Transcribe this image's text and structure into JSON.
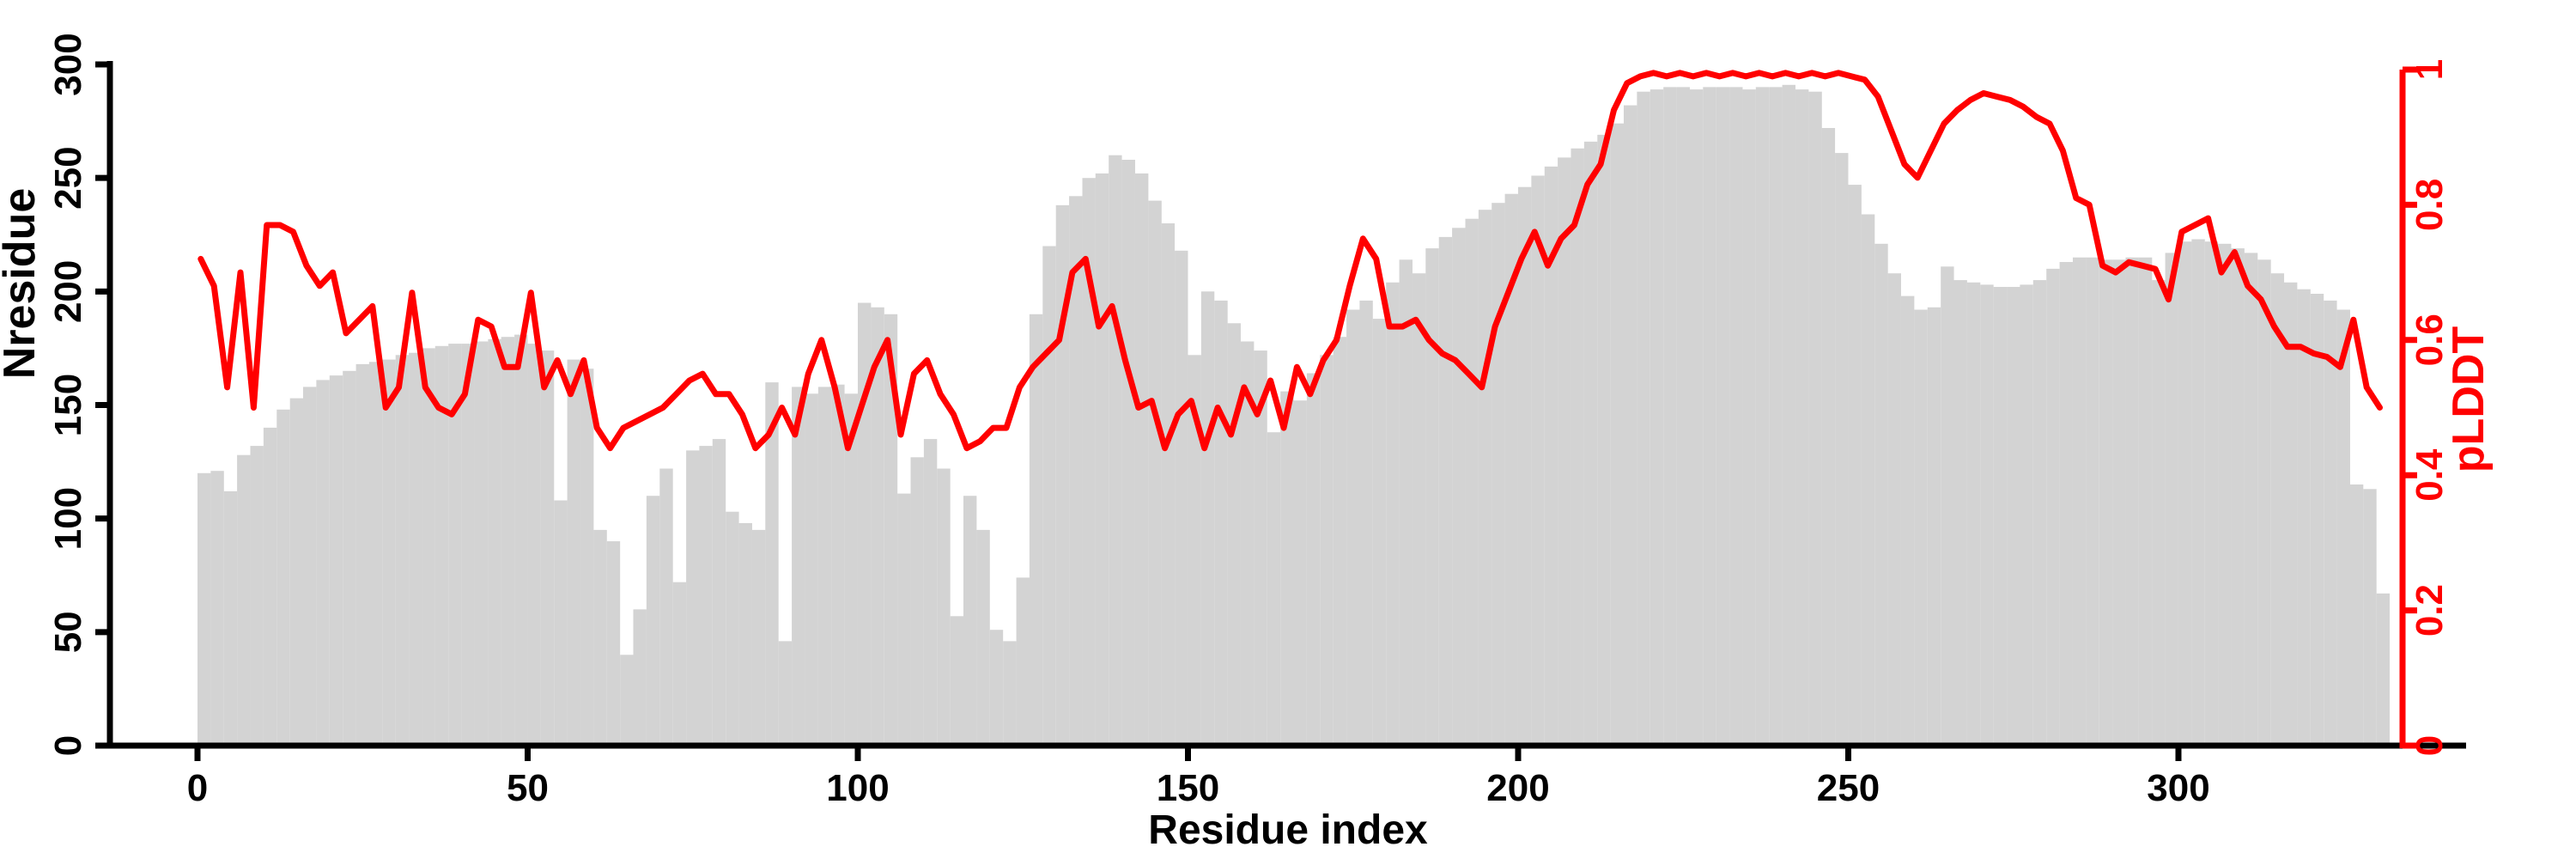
{
  "figure": {
    "background": "#ffffff",
    "bar_color": "#d3d3d3",
    "line_color": "#ff0000",
    "axis_color": "#000000"
  },
  "chart_data": {
    "type": "combo",
    "title": "",
    "xlabel": "Residue index",
    "ylabel_left": "Nresidue",
    "ylabel_right": "pLDDT",
    "x_ticks": [
      "0",
      "50",
      "100",
      "150",
      "200",
      "250",
      "300"
    ],
    "x_tick_values": [
      0,
      50,
      100,
      150,
      200,
      250,
      300
    ],
    "left_ticks": [
      "0",
      "50",
      "100",
      "150",
      "200",
      "250",
      "300"
    ],
    "left_tick_values": [
      0,
      50,
      100,
      150,
      200,
      250,
      300
    ],
    "right_ticks": [
      "0",
      "0.2",
      "0.4",
      "0.6",
      "0.8",
      "1"
    ],
    "right_tick_values": [
      0,
      0.2,
      0.4,
      0.6,
      0.8,
      1
    ],
    "xlim": [
      0,
      334
    ],
    "ylim_left": [
      0,
      300
    ],
    "ylim_right": [
      0,
      1
    ],
    "grid": false,
    "legend_position": "none",
    "x": [
      0,
      2,
      4,
      6,
      8,
      10,
      12,
      14,
      16,
      18,
      20,
      22,
      24,
      26,
      28,
      30,
      32,
      34,
      36,
      38,
      40,
      42,
      44,
      46,
      48,
      50,
      52,
      54,
      56,
      58,
      60,
      62,
      64,
      66,
      68,
      70,
      72,
      74,
      76,
      78,
      80,
      82,
      84,
      86,
      88,
      90,
      92,
      94,
      96,
      98,
      100,
      102,
      104,
      106,
      108,
      110,
      112,
      114,
      116,
      118,
      120,
      122,
      124,
      126,
      128,
      130,
      132,
      134,
      136,
      138,
      140,
      142,
      144,
      146,
      148,
      150,
      152,
      154,
      156,
      158,
      160,
      162,
      164,
      166,
      168,
      170,
      172,
      174,
      176,
      178,
      180,
      182,
      184,
      186,
      188,
      190,
      192,
      194,
      196,
      198,
      200,
      202,
      204,
      206,
      208,
      210,
      212,
      214,
      216,
      218,
      220,
      222,
      224,
      226,
      228,
      230,
      232,
      234,
      236,
      238,
      240,
      242,
      244,
      246,
      248,
      250,
      252,
      254,
      256,
      258,
      260,
      262,
      264,
      266,
      268,
      270,
      272,
      274,
      276,
      278,
      280,
      282,
      284,
      286,
      288,
      290,
      292,
      294,
      296,
      298,
      300,
      302,
      304,
      306,
      308,
      310,
      312,
      314,
      316,
      318,
      320,
      322,
      324,
      326,
      328,
      330
    ],
    "series": [
      {
        "name": "Nresidue",
        "type": "bar",
        "axis": "left",
        "color": "#d3d3d3",
        "values": [
          120,
          121,
          112,
          128,
          132,
          140,
          148,
          153,
          158,
          161,
          163,
          165,
          168,
          169,
          170,
          172,
          173,
          175,
          176,
          177,
          177,
          178,
          179,
          180,
          181,
          177,
          174,
          108,
          170,
          166,
          95,
          90,
          40,
          60,
          110,
          122,
          72,
          130,
          132,
          135,
          103,
          98,
          95,
          160,
          46,
          158,
          155,
          158,
          159,
          155,
          195,
          193,
          190,
          111,
          127,
          135,
          122,
          57,
          110,
          95,
          51,
          46,
          74,
          190,
          220,
          238,
          242,
          250,
          252,
          260,
          258,
          252,
          240,
          230,
          218,
          172,
          200,
          196,
          186,
          178,
          174,
          138,
          156,
          152,
          164,
          172,
          180,
          192,
          196,
          188,
          204,
          214,
          208,
          219,
          224,
          228,
          232,
          236,
          239,
          243,
          246,
          251,
          255,
          259,
          263,
          266,
          269,
          274,
          282,
          288,
          289,
          290,
          290,
          289,
          290,
          290,
          290,
          289,
          290,
          290,
          291,
          289,
          288,
          272,
          261,
          247,
          234,
          221,
          208,
          198,
          192,
          193,
          211,
          205,
          204,
          203,
          202,
          202,
          203,
          205,
          210,
          213,
          215,
          215,
          214,
          214,
          215,
          215,
          205,
          217,
          222,
          223,
          222,
          221,
          219,
          217,
          214,
          208,
          204,
          201,
          199,
          196,
          192,
          115,
          113,
          67
        ]
      },
      {
        "name": "pLDDT",
        "type": "line",
        "axis": "right",
        "color": "#ff0000",
        "values": [
          0.72,
          0.68,
          0.53,
          0.7,
          0.5,
          0.77,
          0.77,
          0.76,
          0.71,
          0.68,
          0.7,
          0.61,
          0.63,
          0.65,
          0.5,
          0.53,
          0.67,
          0.53,
          0.5,
          0.49,
          0.52,
          0.63,
          0.62,
          0.56,
          0.56,
          0.67,
          0.53,
          0.57,
          0.52,
          0.57,
          0.47,
          0.44,
          0.47,
          0.48,
          0.49,
          0.5,
          0.52,
          0.54,
          0.55,
          0.52,
          0.52,
          0.49,
          0.44,
          0.46,
          0.5,
          0.46,
          0.55,
          0.6,
          0.53,
          0.44,
          0.5,
          0.56,
          0.6,
          0.46,
          0.55,
          0.57,
          0.52,
          0.49,
          0.44,
          0.45,
          0.47,
          0.47,
          0.53,
          0.56,
          0.58,
          0.6,
          0.7,
          0.72,
          0.62,
          0.65,
          0.57,
          0.5,
          0.51,
          0.44,
          0.49,
          0.51,
          0.44,
          0.5,
          0.46,
          0.53,
          0.49,
          0.54,
          0.47,
          0.56,
          0.52,
          0.57,
          0.6,
          0.68,
          0.75,
          0.72,
          0.62,
          0.62,
          0.63,
          0.6,
          0.58,
          0.57,
          0.55,
          0.53,
          0.62,
          0.67,
          0.72,
          0.76,
          0.71,
          0.75,
          0.77,
          0.83,
          0.86,
          0.94,
          0.98,
          0.99,
          0.995,
          0.99,
          0.995,
          0.99,
          0.995,
          0.99,
          0.995,
          0.99,
          0.995,
          0.99,
          0.995,
          0.99,
          0.995,
          0.99,
          0.995,
          0.99,
          0.985,
          0.96,
          0.91,
          0.86,
          0.84,
          0.88,
          0.92,
          0.94,
          0.955,
          0.965,
          0.96,
          0.955,
          0.945,
          0.93,
          0.92,
          0.88,
          0.81,
          0.8,
          0.71,
          0.7,
          0.715,
          0.71,
          0.705,
          0.66,
          0.76,
          0.77,
          0.78,
          0.7,
          0.73,
          0.68,
          0.66,
          0.62,
          0.59,
          0.59,
          0.58,
          0.575,
          0.56,
          0.63,
          0.53,
          0.5
        ]
      }
    ]
  }
}
